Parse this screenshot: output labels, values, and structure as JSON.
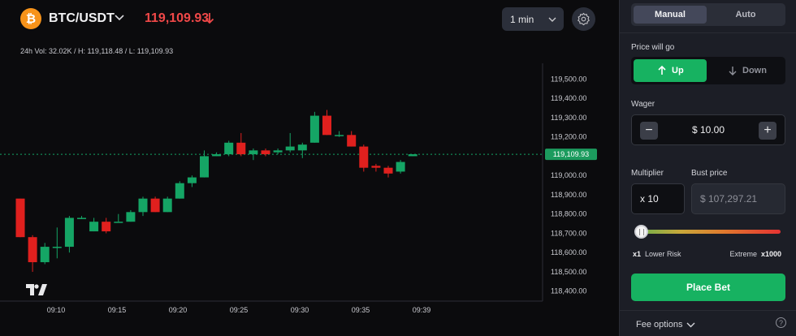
{
  "header": {
    "coin_symbol": "₿",
    "pair": "BTC/USDT",
    "price": "119,109.93",
    "price_color": "#f04848",
    "interval": "1 min",
    "stats": "24h Vol: 32.02K / H: 119,118.48 / L: 119,109.93"
  },
  "chart_data": {
    "type": "candlestick",
    "x_tick_labels": [
      "09:10",
      "09:15",
      "09:20",
      "09:25",
      "09:30",
      "09:35",
      "09:39"
    ],
    "y_tick_labels": [
      "119,500.00",
      "119,400.00",
      "119,300.00",
      "119,200.00",
      "119,100.00",
      "119,000.00",
      "118,900.00",
      "118,800.00",
      "118,700.00",
      "118,600.00",
      "118,500.00",
      "118,400.00"
    ],
    "ylim": [
      118365,
      119565
    ],
    "current_price": 119109.93,
    "current_price_label": "119,109.93",
    "up_color": "#15a565",
    "down_color": "#e0201e",
    "candles": [
      {
        "o": 118880,
        "h": 118880,
        "c": 118680,
        "l": 118680
      },
      {
        "o": 118680,
        "h": 118690,
        "c": 118550,
        "l": 118500
      },
      {
        "o": 118550,
        "h": 118650,
        "c": 118630,
        "l": 118540
      },
      {
        "o": 118630,
        "h": 118730,
        "c": 118630,
        "l": 118570
      },
      {
        "o": 118630,
        "h": 118790,
        "c": 118780,
        "l": 118600
      },
      {
        "o": 118780,
        "h": 118790,
        "c": 118780,
        "l": 118780
      },
      {
        "o": 118710,
        "h": 118780,
        "c": 118760,
        "l": 118710
      },
      {
        "o": 118760,
        "h": 118780,
        "c": 118710,
        "l": 118700
      },
      {
        "o": 118760,
        "h": 118800,
        "c": 118760,
        "l": 118760
      },
      {
        "o": 118760,
        "h": 118820,
        "c": 118810,
        "l": 118760
      },
      {
        "o": 118810,
        "h": 118890,
        "c": 118880,
        "l": 118790
      },
      {
        "o": 118880,
        "h": 118890,
        "c": 118810,
        "l": 118810
      },
      {
        "o": 118810,
        "h": 118890,
        "c": 118880,
        "l": 118810
      },
      {
        "o": 118880,
        "h": 118970,
        "c": 118960,
        "l": 118880
      },
      {
        "o": 118960,
        "h": 119000,
        "c": 118990,
        "l": 118940
      },
      {
        "o": 118990,
        "h": 119130,
        "c": 119100,
        "l": 118990
      },
      {
        "o": 119100,
        "h": 119120,
        "c": 119110,
        "l": 119100
      },
      {
        "o": 119110,
        "h": 119180,
        "c": 119170,
        "l": 119100
      },
      {
        "o": 119170,
        "h": 119220,
        "c": 119110,
        "l": 119100
      },
      {
        "o": 119110,
        "h": 119140,
        "c": 119130,
        "l": 119080
      },
      {
        "o": 119130,
        "h": 119140,
        "c": 119110,
        "l": 119100
      },
      {
        "o": 119120,
        "h": 119140,
        "c": 119130,
        "l": 119110
      },
      {
        "o": 119130,
        "h": 119220,
        "c": 119150,
        "l": 119120
      },
      {
        "o": 119130,
        "h": 119170,
        "c": 119160,
        "l": 119090
      },
      {
        "o": 119170,
        "h": 119330,
        "c": 119310,
        "l": 119170
      },
      {
        "o": 119310,
        "h": 119340,
        "c": 119210,
        "l": 119210
      },
      {
        "o": 119210,
        "h": 119230,
        "c": 119210,
        "l": 119200
      },
      {
        "o": 119210,
        "h": 119230,
        "c": 119150,
        "l": 119150
      },
      {
        "o": 119150,
        "h": 119160,
        "c": 119040,
        "l": 119020
      },
      {
        "o": 119050,
        "h": 119060,
        "c": 119040,
        "l": 119020
      },
      {
        "o": 119040,
        "h": 119050,
        "c": 119010,
        "l": 118990
      },
      {
        "o": 119020,
        "h": 119080,
        "c": 119070,
        "l": 119010
      },
      {
        "o": 119100,
        "h": 119110,
        "c": 119110,
        "l": 119100
      }
    ]
  },
  "panel": {
    "tabs": [
      "Manual",
      "Auto"
    ],
    "active_tab": "Manual",
    "price_will_go_label": "Price will go",
    "up_label": "Up",
    "down_label": "Down",
    "wager_label": "Wager",
    "wager_value": "$ 10.00",
    "minus": "−",
    "plus": "+",
    "multiplier_label": "Multiplier",
    "multiplier_value": "x 10",
    "bust_label": "Bust price",
    "bust_value": "$ 107,297.21",
    "range_low_x": "x1",
    "range_low_text": "Lower Risk",
    "range_high_text": "Extreme",
    "range_high_x": "x1000",
    "slider_level": 0,
    "place_bet": "Place Bet",
    "fee_options": "Fee options",
    "help": "?",
    "accent_green": "#17b261"
  }
}
